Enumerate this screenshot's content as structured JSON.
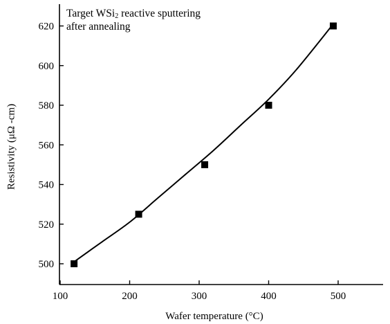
{
  "chart_data": {
    "type": "scatter",
    "annotation": {
      "line1_prefix": "Target WSi",
      "line1_sub": "2",
      "line1_suffix": " reactive sputtering",
      "line2": "after annealing"
    },
    "xlabel": "Wafer temperature (°C)",
    "ylabel": "Resistivity (μΩ -cm)",
    "xlim": [
      100,
      510
    ],
    "ylim": [
      490,
      630
    ],
    "xticks": [
      100,
      200,
      300,
      400,
      500
    ],
    "yticks": [
      500,
      520,
      540,
      560,
      580,
      600,
      620
    ],
    "grid": false,
    "series": [
      {
        "marker": "square",
        "x": [
          120,
          213,
          308,
          400,
          493
        ],
        "y": [
          500,
          525,
          550,
          580,
          620
        ]
      }
    ],
    "fit_curve": {
      "x": [
        120,
        160,
        200,
        240,
        280,
        320,
        360,
        400,
        440,
        493
      ],
      "y": [
        501,
        511,
        521,
        533,
        545,
        557,
        570,
        583,
        598,
        621
      ]
    },
    "colors": {
      "marker": "#000000",
      "line": "#000000",
      "axis": "#000000"
    }
  }
}
